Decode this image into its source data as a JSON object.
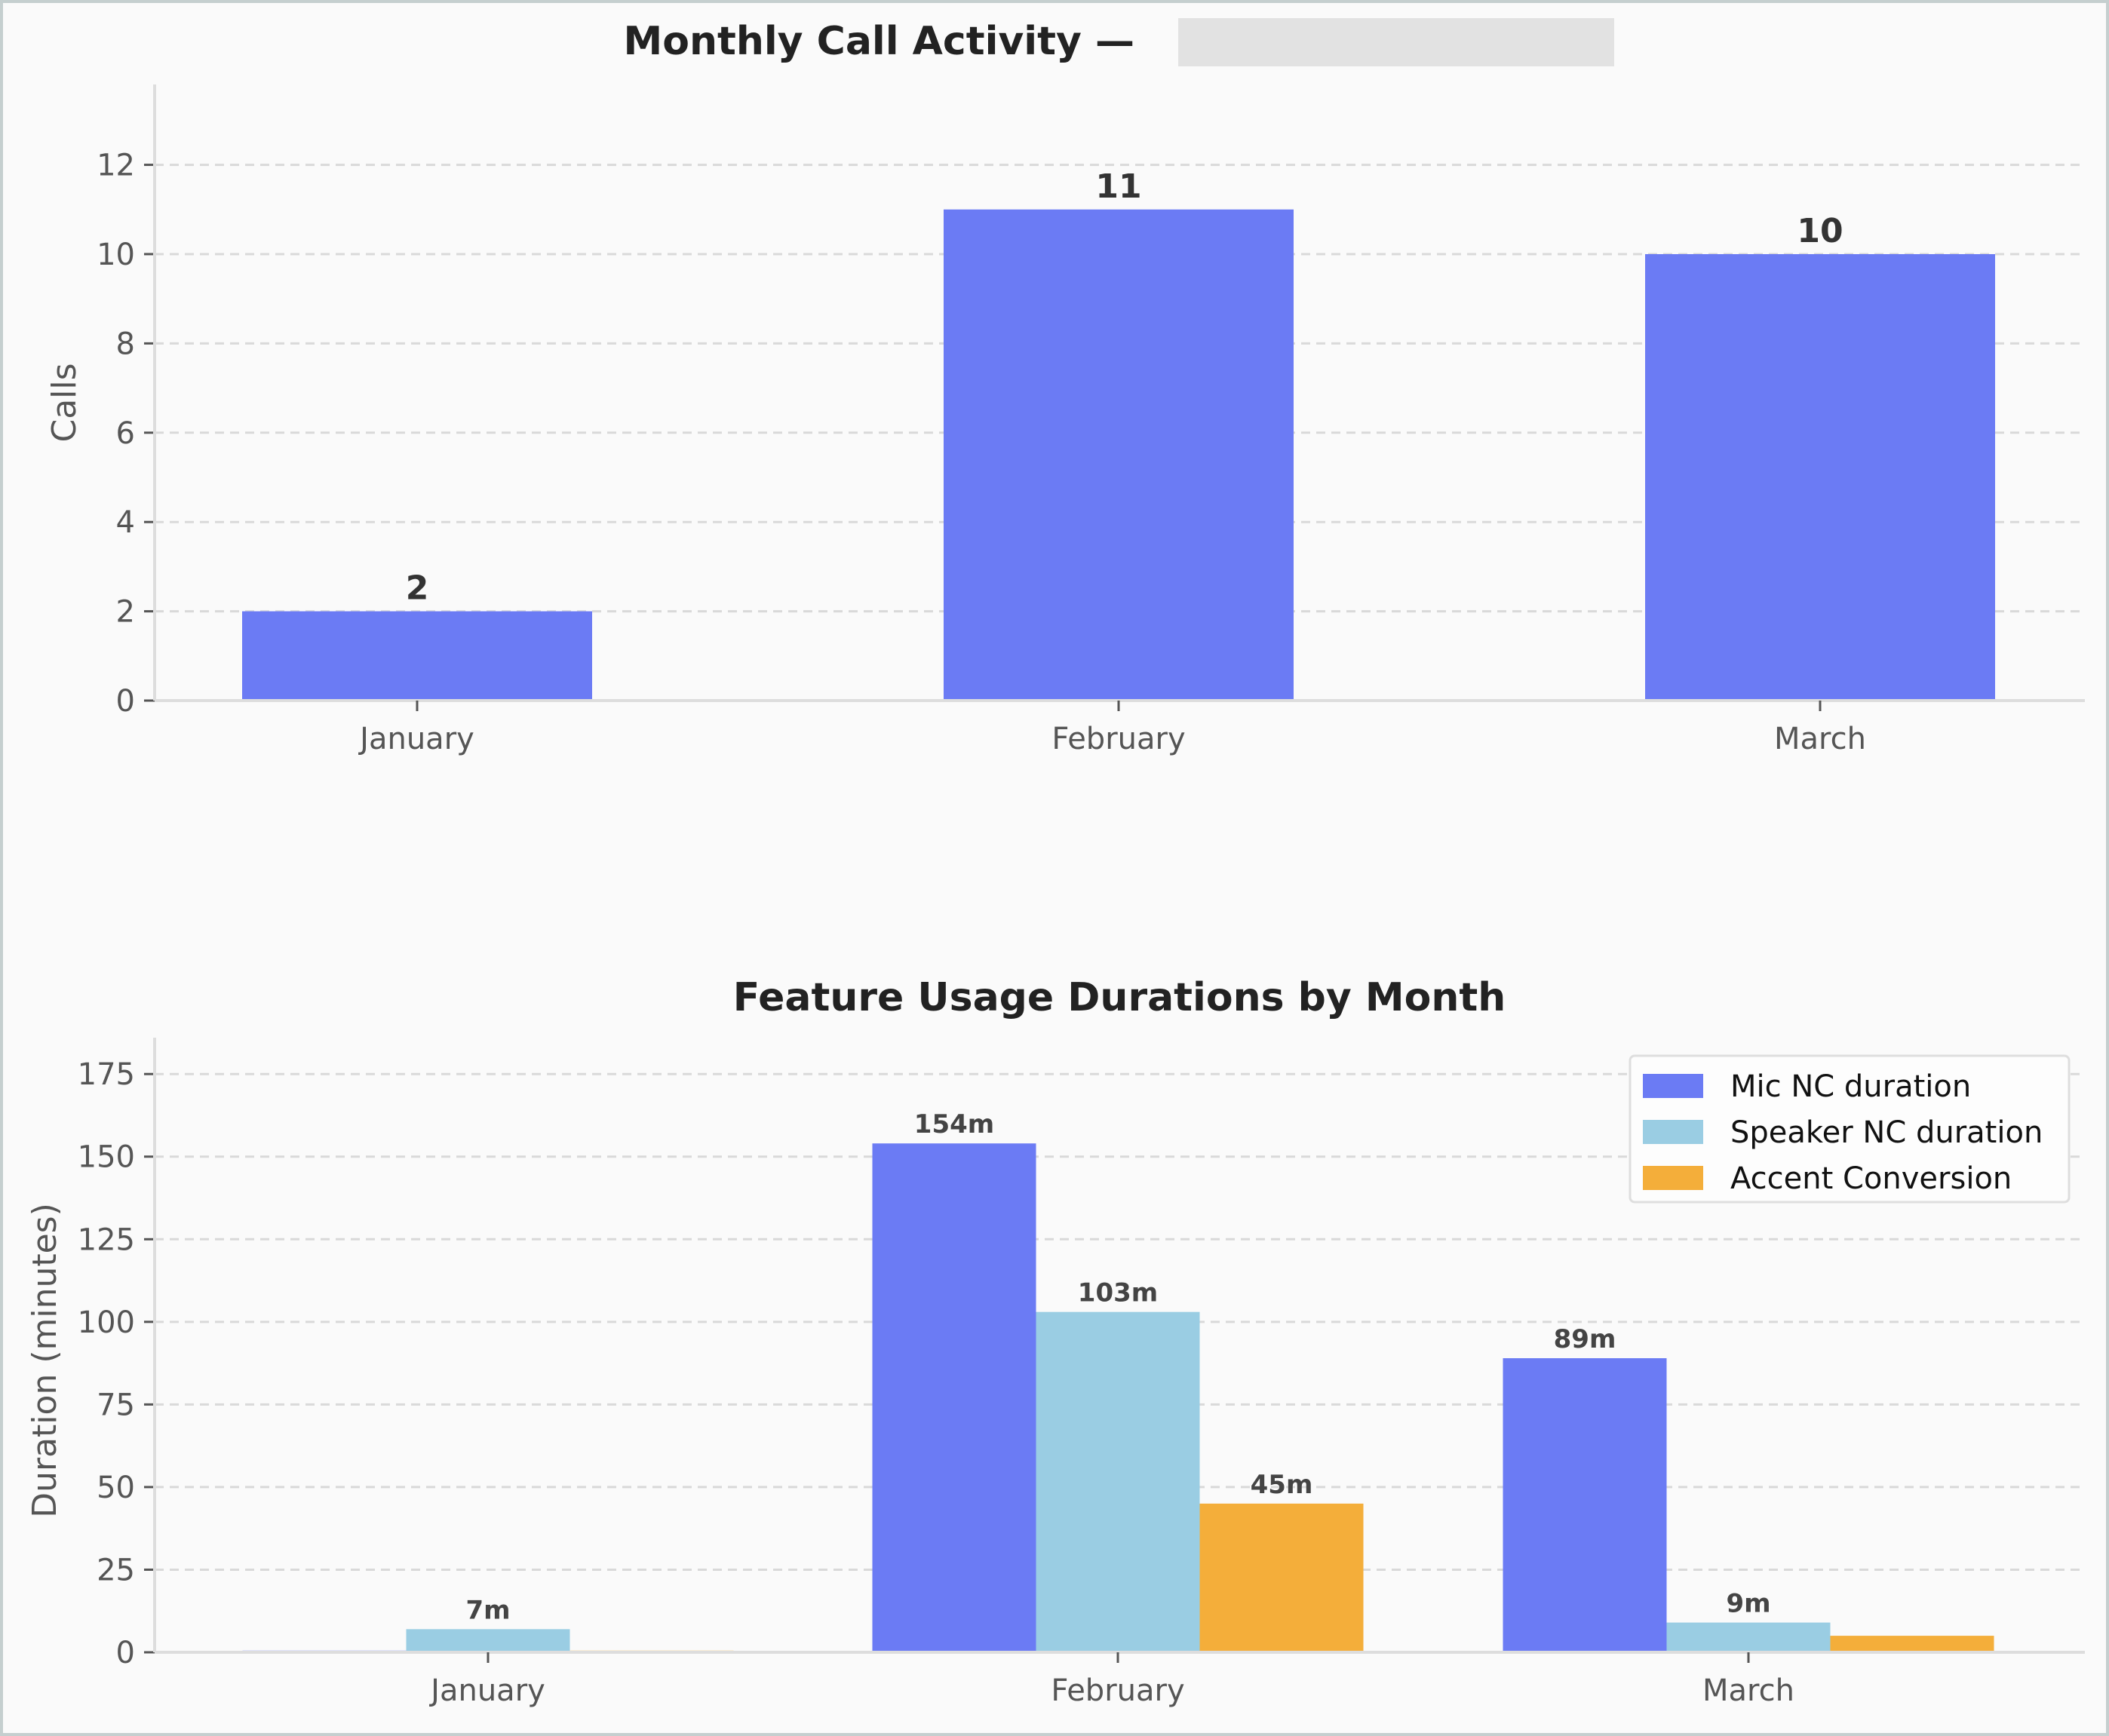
{
  "colors": {
    "background": "#fafafa",
    "frame": "#c5cfcf",
    "grid": "#d9d9d9",
    "spine": "#dddddd",
    "mic": "#6b7bf4",
    "speaker": "#9acde3",
    "accent": "#f4ae3a",
    "redacted": "#e2e2e2"
  },
  "chart_data": [
    {
      "type": "bar",
      "title": "Monthly Call Activity —",
      "title_redacted": true,
      "xlabel": "",
      "ylabel": "Calls",
      "categories": [
        "January",
        "February",
        "March"
      ],
      "values": [
        2,
        11,
        10
      ],
      "value_labels": [
        "2",
        "11",
        "10"
      ],
      "ylim": [
        0,
        13.8
      ],
      "yticks": [
        0,
        2,
        4,
        6,
        8,
        10,
        12
      ],
      "grid": true,
      "grid_style": "dashed-horizontal"
    },
    {
      "type": "bar",
      "title": "Feature Usage Durations by Month",
      "xlabel": "",
      "ylabel": "Duration (minutes)",
      "categories": [
        "January",
        "February",
        "March"
      ],
      "series": [
        {
          "name": "Mic NC duration",
          "color_key": "mic",
          "values": [
            0.5,
            154,
            89
          ],
          "labels": [
            "",
            "154m",
            "89m"
          ]
        },
        {
          "name": "Speaker NC duration",
          "color_key": "speaker",
          "values": [
            7,
            103,
            9
          ],
          "labels": [
            "7m",
            "103m",
            "9m"
          ]
        },
        {
          "name": "Accent Conversion",
          "color_key": "accent",
          "values": [
            0.5,
            45,
            5
          ],
          "labels": [
            "",
            "45m",
            ""
          ]
        }
      ],
      "ylim": [
        0,
        186
      ],
      "yticks": [
        0,
        25,
        50,
        75,
        100,
        125,
        150,
        175
      ],
      "grid": true,
      "grid_style": "dashed-horizontal",
      "legend_position": "top-right"
    }
  ]
}
